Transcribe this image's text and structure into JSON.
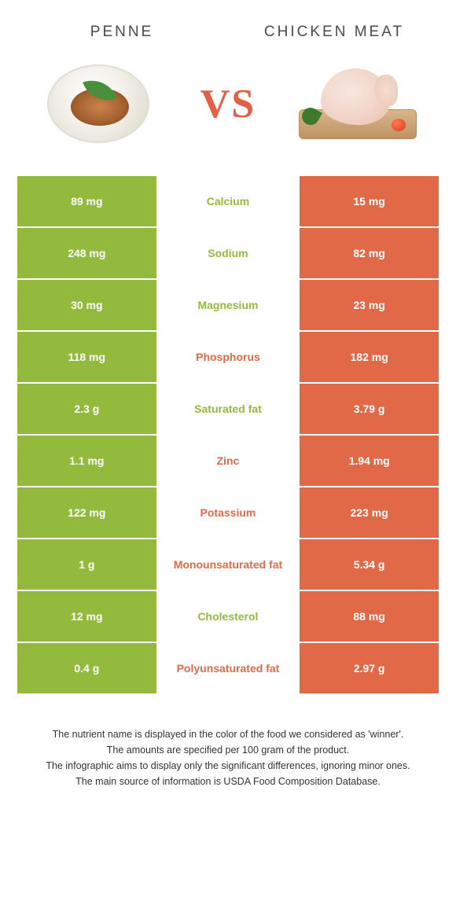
{
  "titles": {
    "left": "PENNE",
    "right": "CHICKEN MEAT"
  },
  "vs_label": "VS",
  "colors": {
    "green": "#94ba3d",
    "orange": "#e16947",
    "background": "#ffffff"
  },
  "rows": [
    {
      "label": "Calcium",
      "left": "89 mg",
      "right": "15 mg",
      "winner": "left"
    },
    {
      "label": "Sodium",
      "left": "248 mg",
      "right": "82 mg",
      "winner": "left"
    },
    {
      "label": "Magnesium",
      "left": "30 mg",
      "right": "23 mg",
      "winner": "left"
    },
    {
      "label": "Phosphorus",
      "left": "118 mg",
      "right": "182 mg",
      "winner": "right"
    },
    {
      "label": "Saturated fat",
      "left": "2.3 g",
      "right": "3.79 g",
      "winner": "left"
    },
    {
      "label": "Zinc",
      "left": "1.1 mg",
      "right": "1.94 mg",
      "winner": "right"
    },
    {
      "label": "Potassium",
      "left": "122 mg",
      "right": "223 mg",
      "winner": "right"
    },
    {
      "label": "Monounsaturated fat",
      "left": "1 g",
      "right": "5.34 g",
      "winner": "right"
    },
    {
      "label": "Cholesterol",
      "left": "12 mg",
      "right": "88 mg",
      "winner": "left"
    },
    {
      "label": "Polyunsaturated fat",
      "left": "0.4 g",
      "right": "2.97 g",
      "winner": "right"
    }
  ],
  "footer": {
    "line1": "The nutrient name is displayed in the color of the food we considered as 'winner'.",
    "line2": "The amounts are specified per 100 gram of the product.",
    "line3": "The infographic aims to display only the significant differences, ignoring minor ones.",
    "line4": "The main source of information is USDA Food Composition Database."
  }
}
